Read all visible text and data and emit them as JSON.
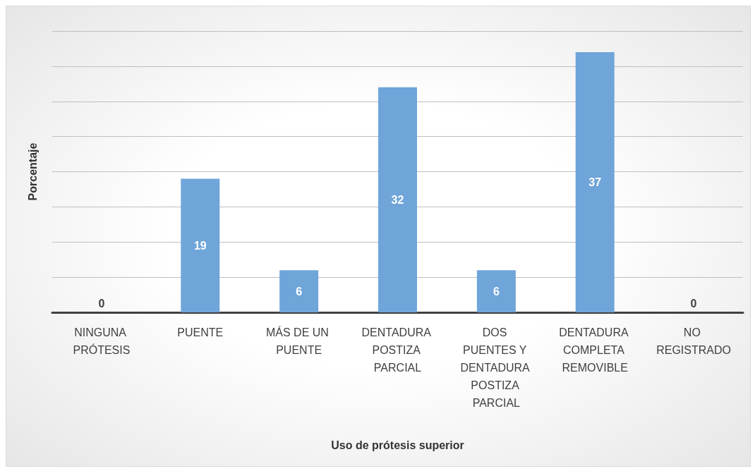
{
  "chart_data": {
    "type": "bar",
    "xlabel": "Uso de prótesis superior",
    "ylabel": "Porcentaje",
    "categories": [
      "NINGUNA PRÓTESIS",
      "PUENTE",
      "MÁS DE UN PUENTE",
      "DENTADURA POSTIZA PARCIAL",
      "DOS PUENTES Y DENTADURA POSTIZA PARCIAL",
      "DENTADURA COMPLETA REMOVIBLE",
      "NO REGISTRADO"
    ],
    "values": [
      0,
      19,
      6,
      32,
      6,
      37,
      0
    ],
    "color": "#6fa5d9",
    "ylim": [
      0,
      40
    ],
    "yticks": [
      {
        "value": 0,
        "label": null
      },
      {
        "value": 5,
        "label": null
      },
      {
        "value": 10,
        "label": null
      },
      {
        "value": 15,
        "label": null
      },
      {
        "value": 20,
        "label": null
      },
      {
        "value": 25,
        "label": null
      },
      {
        "value": 30,
        "label": null
      },
      {
        "value": 35,
        "label": null
      },
      {
        "value": 40,
        "label": null
      }
    ],
    "grid": "y",
    "data_labels": true
  }
}
